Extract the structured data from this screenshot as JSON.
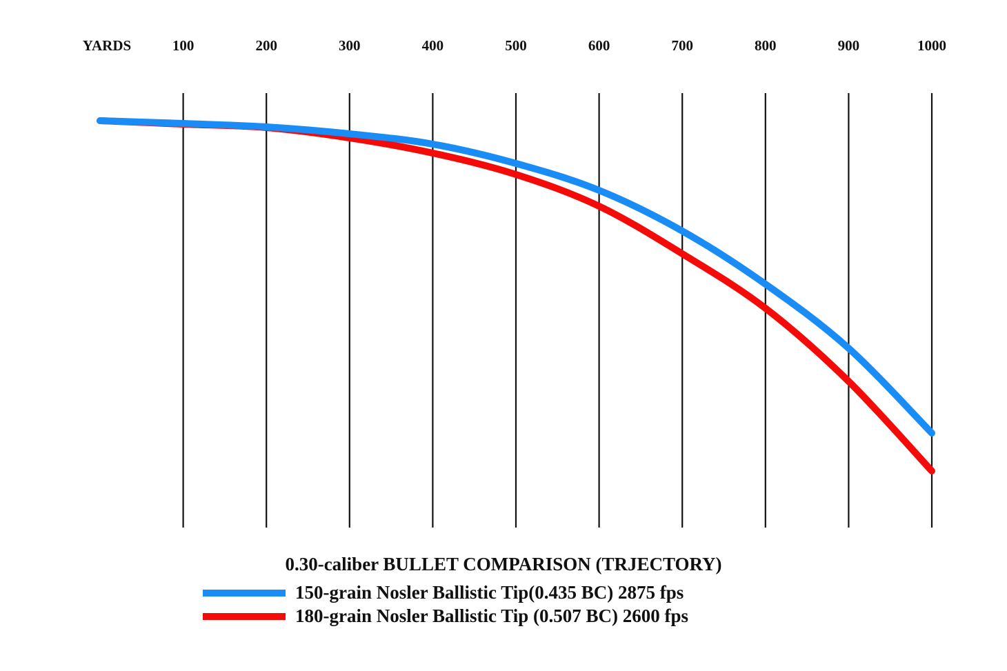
{
  "chart_data": {
    "type": "line",
    "title": "0.30-caliber BULLET COMPARISON (TRJECTORY)",
    "xlabel": "YARDS",
    "ylabel": "",
    "x_ticks": [
      "100",
      "200",
      "300",
      "400",
      "500",
      "600",
      "700",
      "800",
      "900",
      "1000"
    ],
    "x": [
      0,
      100,
      200,
      300,
      400,
      500,
      600,
      700,
      800,
      900,
      1000
    ],
    "xlim": [
      0,
      1000
    ],
    "y_axis": "unlabeled, drop increases downward (relative units)",
    "ylim": [
      0,
      560
    ],
    "grid": "vertical lines at each 100 yards",
    "legend_position": "bottom",
    "series": [
      {
        "name": "150-grain Nosler Ballistic Tip(0.435 BC) 2875 fps",
        "color": "#1a8cf5",
        "values": [
          0,
          4,
          9,
          19,
          34,
          62,
          101,
          160,
          237,
          330,
          453
        ]
      },
      {
        "name": "180-grain Nosler Ballistic Tip (0.507 BC) 2600 fps",
        "color": "#f50a0a",
        "values": [
          0,
          5,
          10,
          25,
          47,
          78,
          124,
          193,
          272,
          378,
          508
        ]
      }
    ]
  }
}
